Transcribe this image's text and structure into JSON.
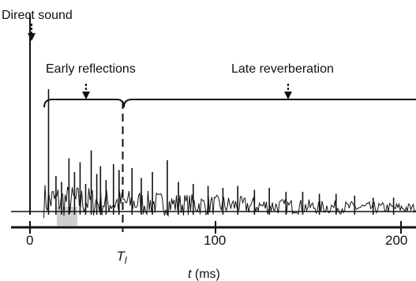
{
  "chart_data": {
    "type": "line",
    "title": "",
    "xlabel": "t (ms)",
    "ylabel": "",
    "xlim": [
      -14,
      205
    ],
    "grid": false,
    "legend": "none",
    "x_ticks": [
      {
        "value": 0,
        "label": "0"
      },
      {
        "value": 100,
        "label": "100"
      },
      {
        "value": 200,
        "label": "200"
      }
    ],
    "boundary_marker": {
      "x": 50,
      "label_main": "T",
      "label_sub": "l"
    },
    "annotations": [
      {
        "text": "Direct sound",
        "x": 0
      },
      {
        "text": "Early reflections",
        "x": 29,
        "range": [
          10,
          50
        ]
      },
      {
        "text": "Late reverberation",
        "x": 132,
        "range": [
          50,
          205
        ]
      }
    ],
    "series": [
      {
        "values_description": "",
        "impulses": [
          {
            "x": 0,
            "amplitude": 1.0
          },
          {
            "x": 10,
            "amplitude": 0.62
          },
          {
            "x": 14,
            "amplitude": 0.18
          },
          {
            "x": 17,
            "amplitude": 0.15
          },
          {
            "x": 21,
            "amplitude": 0.27
          },
          {
            "x": 24,
            "amplitude": 0.2
          },
          {
            "x": 27,
            "amplitude": 0.25
          },
          {
            "x": 30,
            "amplitude": 0.14
          },
          {
            "x": 33,
            "amplitude": 0.31
          },
          {
            "x": 36,
            "amplitude": 0.19
          },
          {
            "x": 38,
            "amplitude": 0.23
          },
          {
            "x": 41,
            "amplitude": 0.16
          },
          {
            "x": 45,
            "amplitude": 0.24
          },
          {
            "x": 48,
            "amplitude": 0.21
          },
          {
            "x": 55,
            "amplitude": 0.22
          },
          {
            "x": 60,
            "amplitude": 0.17
          },
          {
            "x": 66,
            "amplitude": 0.2
          },
          {
            "x": 74,
            "amplitude": 0.26
          },
          {
            "x": 80,
            "amplitude": 0.15
          },
          {
            "x": 88,
            "amplitude": 0.14
          },
          {
            "x": 96,
            "amplitude": 0.13
          },
          {
            "x": 104,
            "amplitude": 0.12
          },
          {
            "x": 112,
            "amplitude": 0.13
          },
          {
            "x": 121,
            "amplitude": 0.11
          },
          {
            "x": 129,
            "amplitude": 0.12
          },
          {
            "x": 138,
            "amplitude": 0.1
          },
          {
            "x": 147,
            "amplitude": 0.1
          },
          {
            "x": 156,
            "amplitude": 0.09
          },
          {
            "x": 165,
            "amplitude": 0.09
          },
          {
            "x": 175,
            "amplitude": 0.08
          },
          {
            "x": 185,
            "amplitude": 0.07
          },
          {
            "x": 196,
            "amplitude": 0.07
          }
        ]
      }
    ]
  },
  "colors": {
    "ink": "#111111",
    "shade": "#cfcfcf"
  }
}
